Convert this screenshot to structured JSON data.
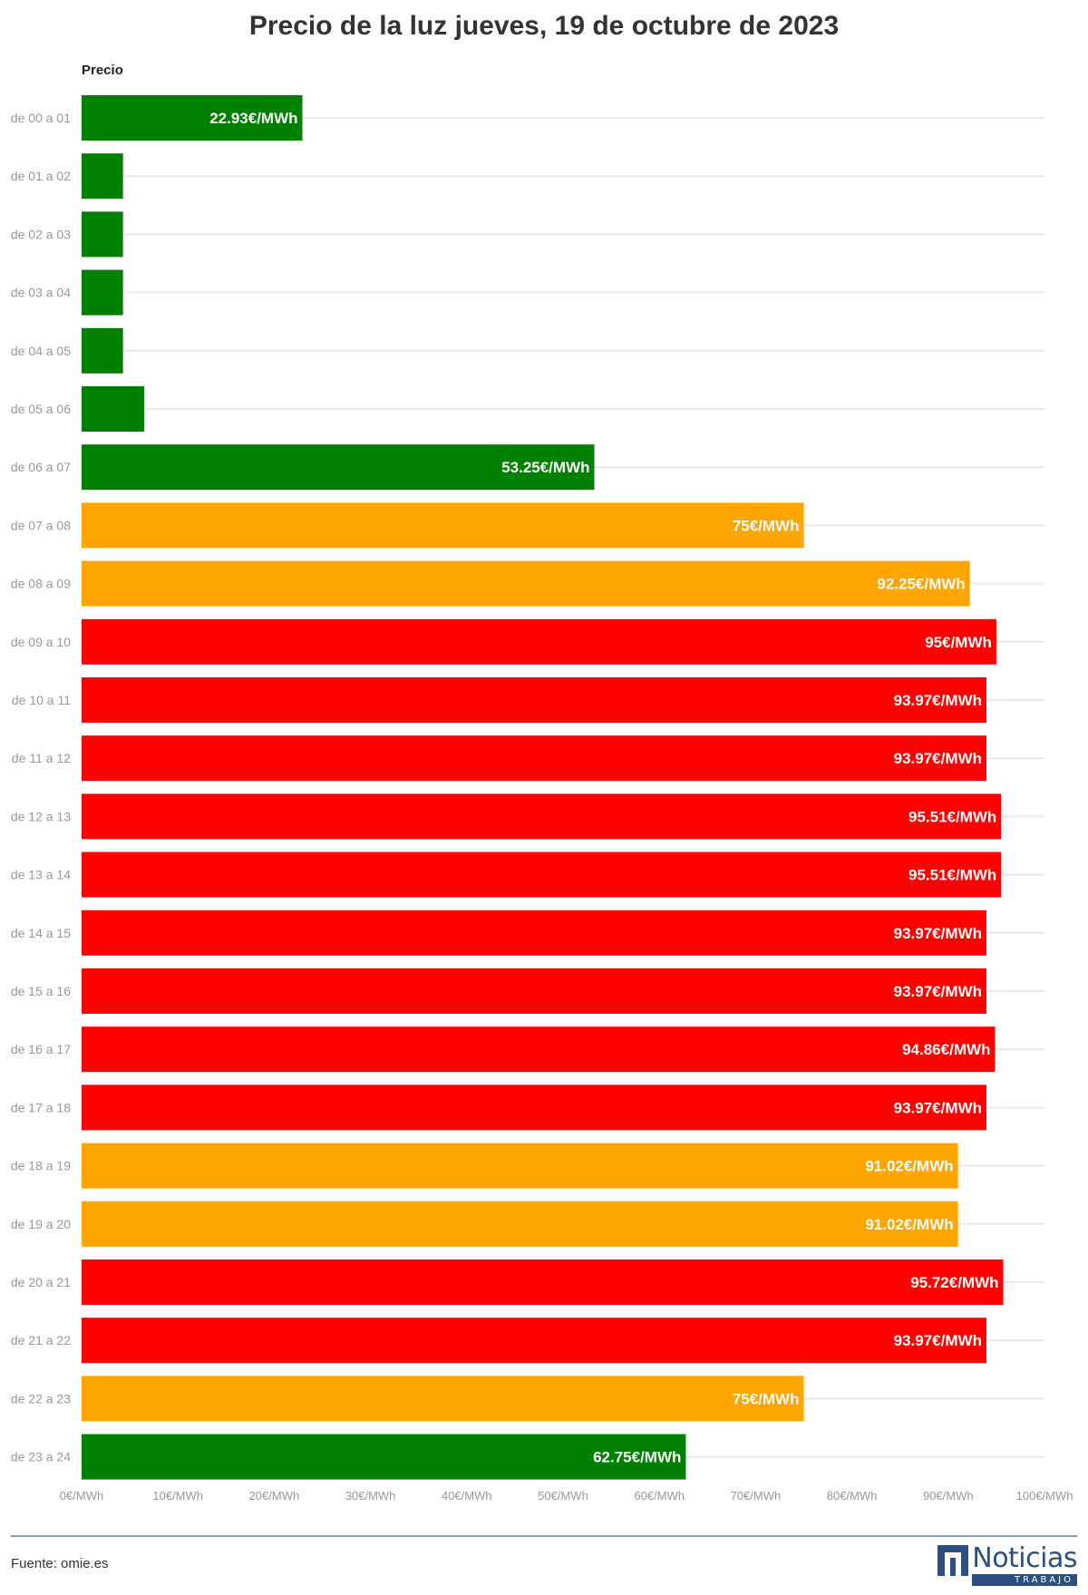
{
  "header": {
    "title": "Precio de la luz jueves, 19 de octubre de 2023",
    "series_label": "Precio"
  },
  "footer": {
    "source": "Fuente: omie.es",
    "logo_word": "Noticias",
    "logo_sub": "TRABAJO"
  },
  "colors": {
    "low": "#008000",
    "mid": "#ffa500",
    "high": "#ff0000",
    "grid": "#e8e8e8",
    "axis_text": "#999999",
    "brand": "#2c4f80"
  },
  "chart_data": {
    "type": "bar",
    "orientation": "horizontal",
    "title": "Precio de la luz jueves, 19 de octubre de 2023",
    "series": [
      {
        "name": "Precio"
      }
    ],
    "unit": "€/MWh",
    "xlim": [
      0,
      100
    ],
    "x_ticks": [
      0,
      10,
      20,
      30,
      40,
      50,
      60,
      70,
      80,
      90,
      100
    ],
    "x_tick_labels": [
      "0€/MWh",
      "10€/MWh",
      "20€/MWh",
      "30€/MWh",
      "40€/MWh",
      "50€/MWh",
      "60€/MWh",
      "70€/MWh",
      "80€/MWh",
      "90€/MWh",
      "100€/MWh"
    ],
    "grid": true,
    "categories": [
      "de 00 a 01",
      "de 01 a 02",
      "de 02 a 03",
      "de 03 a 04",
      "de 04 a 05",
      "de 05 a 06",
      "de 06 a 07",
      "de 07 a 08",
      "de 08 a 09",
      "de 09 a 10",
      "de 10 a 11",
      "de 11 a 12",
      "de 12 a 13",
      "de 13 a 14",
      "de 14 a 15",
      "de 15 a 16",
      "de 16 a 17",
      "de 17 a 18",
      "de 18 a 19",
      "de 19 a 20",
      "de 20 a 21",
      "de 21 a 22",
      "de 22 a 23",
      "de 23 a 24"
    ],
    "values": [
      22.93,
      4.3,
      4.3,
      4.3,
      4.3,
      6.5,
      53.25,
      75,
      92.25,
      95,
      93.97,
      93.97,
      95.51,
      95.51,
      93.97,
      93.97,
      94.86,
      93.97,
      91.02,
      91.02,
      95.72,
      93.97,
      75,
      62.75
    ],
    "value_labels": [
      "22.93€/MWh",
      "",
      "",
      "",
      "",
      "",
      "53.25€/MWh",
      "75€/MWh",
      "92.25€/MWh",
      "95€/MWh",
      "93.97€/MWh",
      "93.97€/MWh",
      "95.51€/MWh",
      "95.51€/MWh",
      "93.97€/MWh",
      "93.97€/MWh",
      "94.86€/MWh",
      "93.97€/MWh",
      "91.02€/MWh",
      "91.02€/MWh",
      "95.72€/MWh",
      "93.97€/MWh",
      "75€/MWh",
      "62.75€/MWh"
    ],
    "bar_colors": [
      "low",
      "low",
      "low",
      "low",
      "low",
      "low",
      "low",
      "mid",
      "mid",
      "high",
      "high",
      "high",
      "high",
      "high",
      "high",
      "high",
      "high",
      "high",
      "mid",
      "mid",
      "high",
      "high",
      "mid",
      "low"
    ]
  }
}
